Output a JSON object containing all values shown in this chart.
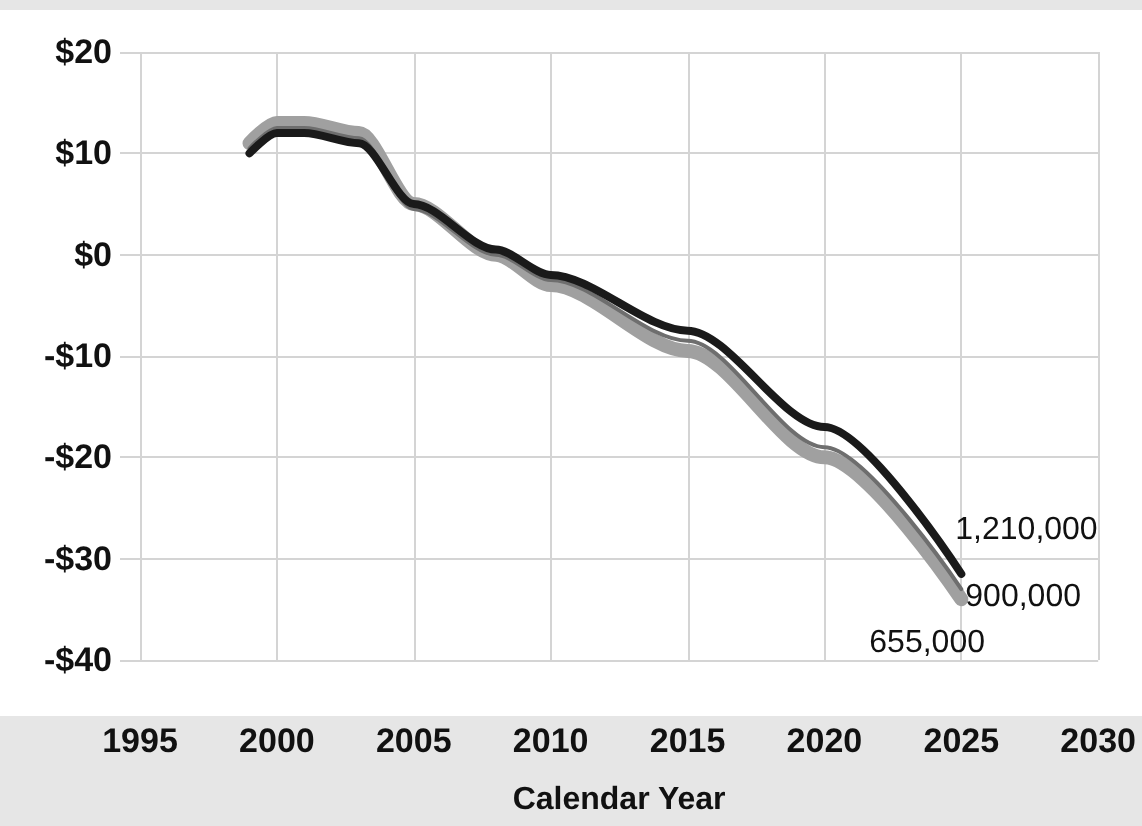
{
  "chart_data": {
    "type": "line",
    "xlabel": "Calendar Year",
    "xlim": [
      1995,
      2030
    ],
    "xticks": [
      1995,
      2000,
      2005,
      2010,
      2015,
      2020,
      2025,
      2030
    ],
    "ylim": [
      -40,
      20
    ],
    "yticks": [
      {
        "value": -40,
        "label": "-$40"
      },
      {
        "value": -30,
        "label": "-$30"
      },
      {
        "value": -20,
        "label": "-$20"
      },
      {
        "value": -10,
        "label": "-$10"
      },
      {
        "value": 0,
        "label": "$0"
      },
      {
        "value": 10,
        "label": "$10"
      },
      {
        "value": 20,
        "label": "$20"
      }
    ],
    "grid": true,
    "legend": false,
    "marker": "none",
    "line_style": "solid",
    "x": [
      1999,
      2000,
      2001,
      2003,
      2005,
      2008,
      2010,
      2015,
      2020,
      2025
    ],
    "series": [
      {
        "name": "655,000",
        "color": "#a0a0a0",
        "values": [
          11,
          13,
          13,
          12,
          5,
          0,
          -3,
          -9.5,
          -20,
          -34
        ]
      },
      {
        "name": "900,000",
        "color": "#6e6e6e",
        "values": [
          10.5,
          12.5,
          12.5,
          11.5,
          4.5,
          0,
          -2.5,
          -8.5,
          -19,
          -33
        ]
      },
      {
        "name": "1,210,000",
        "color": "#1a1a1a",
        "values": [
          10,
          12,
          12,
          11,
          5,
          0.5,
          -2,
          -7.5,
          -17,
          -31.5
        ]
      }
    ]
  }
}
